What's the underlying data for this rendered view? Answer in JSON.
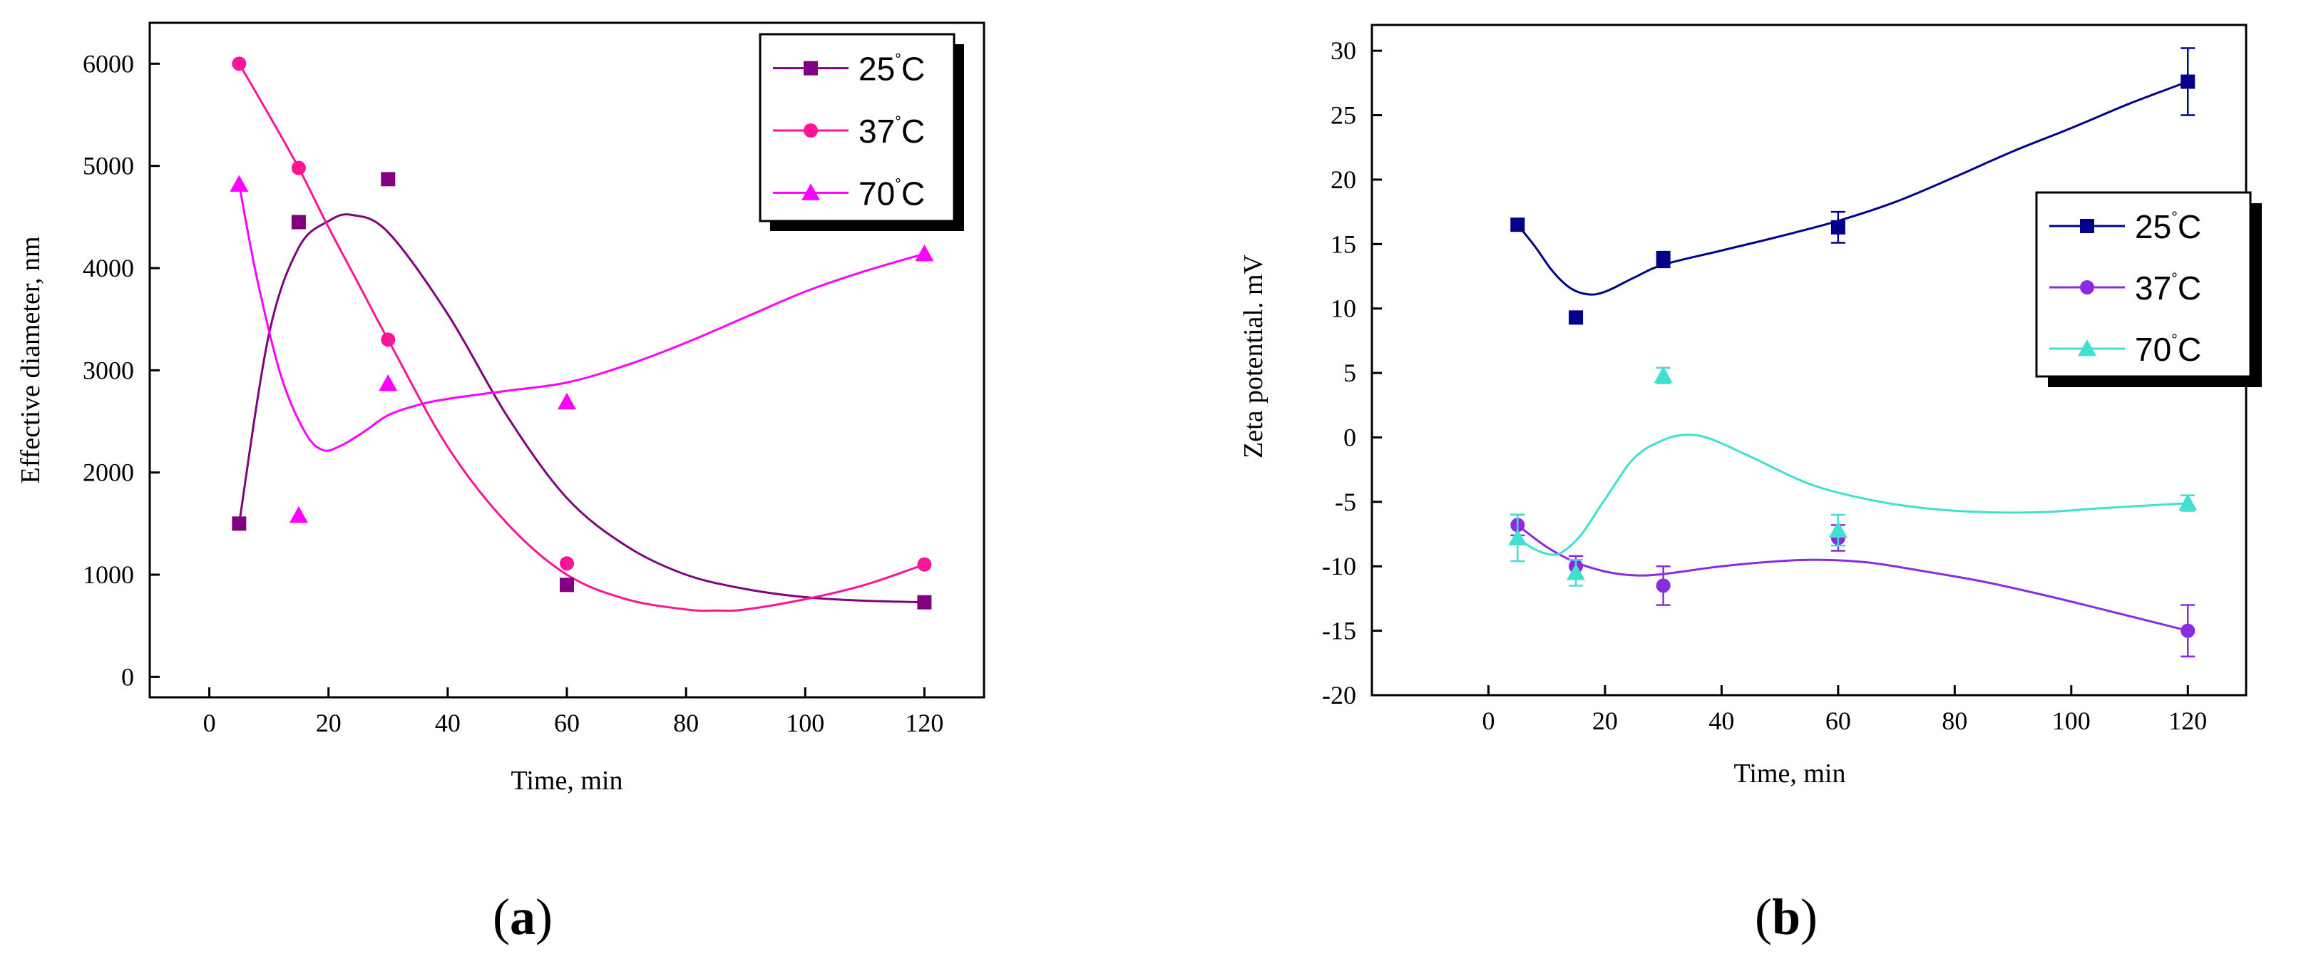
{
  "chart_data": [
    {
      "type": "scatter",
      "panel": "a",
      "caption_open": "(",
      "caption_letter": "a",
      "caption_close": ")",
      "xlabel": "Time, min",
      "ylabel": "Effective diameter, nm",
      "xlim": [
        -10,
        130
      ],
      "ylim": [
        -200,
        6400
      ],
      "xticks": [
        0,
        20,
        40,
        60,
        80,
        100,
        120
      ],
      "yticks": [
        0,
        1000,
        2000,
        3000,
        4000,
        5000,
        6000
      ],
      "legend_position": "top-right",
      "series": [
        {
          "name": "25",
          "unit": "C",
          "degree": "°",
          "color": "#800080",
          "marker": "square",
          "x": [
            5,
            15,
            30,
            60,
            120
          ],
          "y": [
            1500,
            4450,
            4870,
            900,
            730
          ],
          "fit_x": [
            5,
            10,
            15,
            20,
            24,
            30,
            40,
            50,
            60,
            70,
            80,
            90,
            100,
            110,
            120
          ],
          "fit_y": [
            1500,
            3350,
            4200,
            4460,
            4520,
            4350,
            3550,
            2550,
            1750,
            1280,
            1000,
            860,
            780,
            745,
            730
          ]
        },
        {
          "name": "37",
          "unit": "C",
          "degree": "°",
          "color": "#ff1493",
          "marker": "circle",
          "x": [
            5,
            15,
            30,
            60,
            120
          ],
          "y": [
            6000,
            4980,
            3300,
            1110,
            1100
          ],
          "fit_x": [
            5,
            10,
            15,
            20,
            25,
            30,
            40,
            50,
            60,
            70,
            80,
            85,
            90,
            100,
            110,
            120
          ],
          "fit_y": [
            6000,
            5500,
            4980,
            4400,
            3850,
            3300,
            2250,
            1500,
            1000,
            760,
            660,
            650,
            660,
            760,
            900,
            1100
          ]
        },
        {
          "name": "70",
          "unit": "C",
          "degree": "°",
          "color": "#ff00ff",
          "marker": "triangle",
          "x": [
            5,
            15,
            30,
            60,
            120
          ],
          "y": [
            4820,
            1580,
            2870,
            2690,
            4140
          ],
          "fit_x": [
            5,
            8,
            12,
            16,
            19,
            22,
            26,
            30,
            35,
            40,
            50,
            60,
            70,
            80,
            90,
            100,
            110,
            120
          ],
          "fit_y": [
            4820,
            3900,
            2950,
            2400,
            2220,
            2260,
            2400,
            2560,
            2660,
            2720,
            2800,
            2880,
            3050,
            3270,
            3520,
            3770,
            3970,
            4140
          ]
        }
      ]
    },
    {
      "type": "scatter",
      "panel": "b",
      "caption_open": "(",
      "caption_letter": "b",
      "caption_close": ")",
      "xlabel": "Time, min",
      "ylabel": "Zeta potential. mV",
      "xlim": [
        -20,
        130
      ],
      "ylim": [
        -20,
        32
      ],
      "xticks": [
        0,
        20,
        40,
        60,
        80,
        100,
        120
      ],
      "yticks": [
        -20,
        -15,
        -10,
        -5,
        0,
        5,
        10,
        15,
        20,
        25,
        30
      ],
      "legend_position": "top-right",
      "series": [
        {
          "name": "25",
          "unit": "C",
          "degree": "°",
          "color": "#00008b",
          "marker": "square",
          "x": [
            5,
            15,
            30,
            60,
            120
          ],
          "y": [
            16.5,
            9.3,
            13.8,
            16.3,
            27.6
          ],
          "err": [
            0.4,
            0.4,
            0.6,
            1.2,
            2.6
          ],
          "fit_x": [
            5,
            8,
            11,
            14,
            17,
            20,
            25,
            30,
            40,
            50,
            60,
            70,
            80,
            90,
            100,
            110,
            120
          ],
          "fit_y": [
            16.5,
            14.8,
            12.9,
            11.6,
            11.1,
            11.3,
            12.4,
            13.4,
            14.5,
            15.6,
            16.8,
            18.3,
            20.2,
            22.2,
            24.0,
            25.9,
            27.6
          ]
        },
        {
          "name": "37",
          "unit": "C",
          "degree": "°",
          "color": "#8a2be2",
          "marker": "circle",
          "x": [
            5,
            15,
            30,
            60,
            120
          ],
          "y": [
            -6.8,
            -10.0,
            -11.5,
            -7.8,
            -15.0
          ],
          "err": [
            0.8,
            0.8,
            1.5,
            1.0,
            2.0
          ],
          "fit_x": [
            5,
            10,
            15,
            20,
            25,
            30,
            40,
            50,
            57,
            65,
            75,
            85,
            95,
            105,
            120
          ],
          "fit_y": [
            -6.8,
            -8.5,
            -9.7,
            -10.4,
            -10.7,
            -10.6,
            -10.0,
            -9.6,
            -9.5,
            -9.7,
            -10.4,
            -11.2,
            -12.2,
            -13.3,
            -15.0
          ]
        },
        {
          "name": "70",
          "unit": "C",
          "degree": "°",
          "color": "#40e0d0",
          "marker": "triangle",
          "x": [
            5,
            15,
            30,
            60,
            120
          ],
          "y": [
            -7.8,
            -10.5,
            4.8,
            -7.2,
            -5.1
          ],
          "err": [
            1.8,
            1.0,
            0.6,
            1.2,
            0.6
          ],
          "fit_x": [
            5,
            8,
            11,
            13,
            16,
            20,
            25,
            30,
            34,
            38,
            45,
            55,
            65,
            75,
            85,
            95,
            105,
            120
          ],
          "fit_y": [
            -7.8,
            -8.7,
            -9.1,
            -8.8,
            -7.5,
            -4.8,
            -1.6,
            -0.2,
            0.2,
            -0.1,
            -1.5,
            -3.6,
            -4.8,
            -5.5,
            -5.8,
            -5.8,
            -5.5,
            -5.1
          ]
        }
      ]
    }
  ]
}
